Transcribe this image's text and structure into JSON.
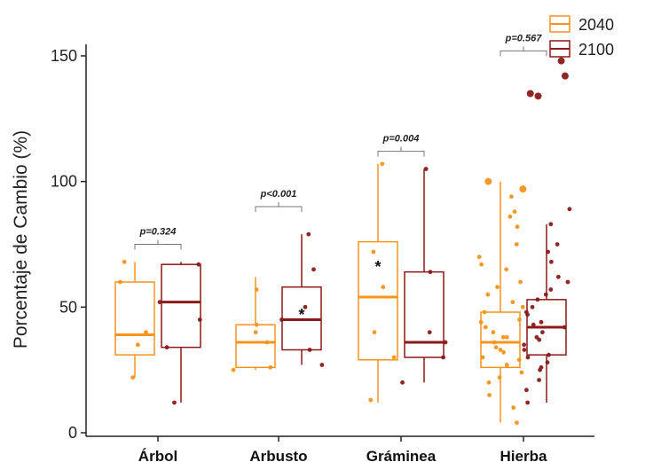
{
  "chart_data": {
    "type": "box",
    "ylabel": "Porcentaje de Cambio (%)",
    "ylim": [
      0,
      155
    ],
    "yticks": [
      0,
      50,
      100,
      150
    ],
    "categories": [
      "Árbol",
      "Arbusto",
      "Gráminea",
      "Hierba"
    ],
    "legend": {
      "placement": "top-right",
      "entries": [
        "2040",
        "2100"
      ]
    },
    "colors": {
      "2040": "#F7941D",
      "2100": "#8B1A1A"
    },
    "series": [
      {
        "name": "2040",
        "boxes": [
          {
            "category": "Árbol",
            "q1": 31,
            "median": 39,
            "q3": 60,
            "whisker_low": 22,
            "whisker_high": 68
          },
          {
            "category": "Arbusto",
            "q1": 26,
            "median": 36,
            "q3": 43,
            "whisker_low": 25,
            "whisker_high": 62
          },
          {
            "category": "Gráminea",
            "q1": 29,
            "median": 54,
            "q3": 76,
            "whisker_low": 12,
            "whisker_high": 107
          },
          {
            "category": "Hierba",
            "q1": 26,
            "median": 36,
            "q3": 48,
            "whisker_low": 4,
            "whisker_high": 100
          }
        ]
      },
      {
        "name": "2100",
        "boxes": [
          {
            "category": "Árbol",
            "q1": 34,
            "median": 52,
            "q3": 67,
            "whisker_low": 12,
            "whisker_high": 68
          },
          {
            "category": "Arbusto",
            "q1": 33,
            "median": 45,
            "q3": 58,
            "whisker_low": 27,
            "whisker_high": 79
          },
          {
            "category": "Gráminea",
            "q1": 30,
            "median": 36,
            "q3": 64,
            "whisker_low": 20,
            "whisker_high": 105
          },
          {
            "category": "Hierba",
            "q1": 31,
            "median": 42,
            "q3": 53,
            "whisker_low": 12,
            "whisker_high": 83
          }
        ]
      }
    ],
    "points": {
      "2040": [
        [
          "Árbol",
          60
        ],
        [
          "Árbol",
          40
        ],
        [
          "Árbol",
          35
        ],
        [
          "Árbol",
          22
        ],
        [
          "Árbol",
          68
        ],
        [
          "Arbusto",
          26
        ],
        [
          "Arbusto",
          36
        ],
        [
          "Arbusto",
          40
        ],
        [
          "Arbusto",
          43
        ],
        [
          "Arbusto",
          57
        ],
        [
          "Arbusto",
          25
        ],
        [
          "Gráminea",
          107
        ],
        [
          "Gráminea",
          58
        ],
        [
          "Gráminea",
          72
        ],
        [
          "Gráminea",
          30
        ],
        [
          "Gráminea",
          13
        ],
        [
          "Gráminea",
          40
        ],
        [
          "Hierba",
          100
        ],
        [
          "Hierba",
          97
        ],
        [
          "Hierba",
          86
        ],
        [
          "Hierba",
          82
        ],
        [
          "Hierba",
          75
        ],
        [
          "Hierba",
          70
        ],
        [
          "Hierba",
          65
        ],
        [
          "Hierba",
          60
        ],
        [
          "Hierba",
          55
        ],
        [
          "Hierba",
          52
        ],
        [
          "Hierba",
          48
        ],
        [
          "Hierba",
          45
        ],
        [
          "Hierba",
          42
        ],
        [
          "Hierba",
          40
        ],
        [
          "Hierba",
          38
        ],
        [
          "Hierba",
          36
        ],
        [
          "Hierba",
          34
        ],
        [
          "Hierba",
          32
        ],
        [
          "Hierba",
          30
        ],
        [
          "Hierba",
          27
        ],
        [
          "Hierba",
          24
        ],
        [
          "Hierba",
          20
        ],
        [
          "Hierba",
          15
        ],
        [
          "Hierba",
          10
        ],
        [
          "Hierba",
          4
        ],
        [
          "Hierba",
          38
        ],
        [
          "Hierba",
          44
        ],
        [
          "Hierba",
          33
        ],
        [
          "Hierba",
          88
        ],
        [
          "Hierba",
          94
        ],
        [
          "Hierba",
          67
        ],
        [
          "Hierba",
          58
        ],
        [
          "Hierba",
          50
        ],
        [
          "Hierba",
          29
        ],
        [
          "Hierba",
          22
        ]
      ],
      "2100": [
        [
          "Árbol",
          52
        ],
        [
          "Árbol",
          12
        ],
        [
          "Árbol",
          67
        ],
        [
          "Árbol",
          34
        ],
        [
          "Árbol",
          45
        ],
        [
          "Arbusto",
          79
        ],
        [
          "Arbusto",
          65
        ],
        [
          "Arbusto",
          45
        ],
        [
          "Arbusto",
          33
        ],
        [
          "Arbusto",
          27
        ],
        [
          "Arbusto",
          50
        ],
        [
          "Gráminea",
          105
        ],
        [
          "Gráminea",
          64
        ],
        [
          "Gráminea",
          40
        ],
        [
          "Gráminea",
          36
        ],
        [
          "Gráminea",
          30
        ],
        [
          "Gráminea",
          20
        ],
        [
          "Hierba",
          148
        ],
        [
          "Hierba",
          142
        ],
        [
          "Hierba",
          134
        ],
        [
          "Hierba",
          135
        ],
        [
          "Hierba",
          89
        ],
        [
          "Hierba",
          83
        ],
        [
          "Hierba",
          75
        ],
        [
          "Hierba",
          68
        ],
        [
          "Hierba",
          62
        ],
        [
          "Hierba",
          57
        ],
        [
          "Hierba",
          53
        ],
        [
          "Hierba",
          50
        ],
        [
          "Hierba",
          47
        ],
        [
          "Hierba",
          44
        ],
        [
          "Hierba",
          42
        ],
        [
          "Hierba",
          40
        ],
        [
          "Hierba",
          38
        ],
        [
          "Hierba",
          35
        ],
        [
          "Hierba",
          33
        ],
        [
          "Hierba",
          31
        ],
        [
          "Hierba",
          28
        ],
        [
          "Hierba",
          25
        ],
        [
          "Hierba",
          21
        ],
        [
          "Hierba",
          17
        ],
        [
          "Hierba",
          12
        ],
        [
          "Hierba",
          60
        ],
        [
          "Hierba",
          48
        ],
        [
          "Hierba",
          43
        ],
        [
          "Hierba",
          72
        ],
        [
          "Hierba",
          55
        ],
        [
          "Hierba",
          37
        ],
        [
          "Hierba",
          30
        ],
        [
          "Hierba",
          26
        ]
      ]
    },
    "comparisons": [
      {
        "category": "Árbol",
        "label": "p=0.324",
        "y": 75
      },
      {
        "category": "Arbusto",
        "label": "p<0.001",
        "y": 90
      },
      {
        "category": "Gráminea",
        "label": "p=0.004",
        "y": 112
      },
      {
        "category": "Hierba",
        "label": "p=0.567",
        "y": 152
      }
    ],
    "annotations": [
      {
        "category": "Arbusto",
        "series": "2100",
        "text": "*",
        "y": 47
      },
      {
        "category": "Gráminea",
        "series": "2040",
        "text": "*",
        "y": 66
      }
    ]
  }
}
